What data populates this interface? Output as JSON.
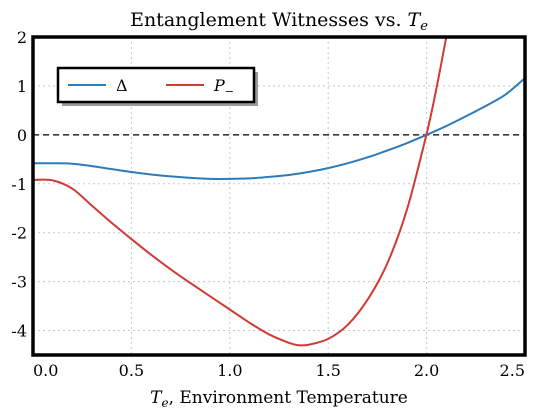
{
  "chart_data": {
    "type": "line",
    "title": {
      "text": "Entanglement Witnesses vs. ",
      "symbol": "T",
      "symbol_sub": "e"
    },
    "xlabel": {
      "symbol": "T",
      "symbol_sub": "e",
      "text": ", Environment Temperature"
    },
    "ylabel": "",
    "xlim": [
      0,
      2.5
    ],
    "ylim": [
      -4.5,
      2
    ],
    "xticks": [
      "0.0",
      "0.5",
      "1.0",
      "1.5",
      "2.0",
      "2.5"
    ],
    "yticks": [
      "2",
      "1",
      "0",
      "-1",
      "-2",
      "-3",
      "-4"
    ],
    "grid": true,
    "reference_line_y": 0,
    "legend_position": "upper-left",
    "series": [
      {
        "name": "Δ",
        "color": "#2e7bb8",
        "x": [
          0.0,
          0.1,
          0.2,
          0.3,
          0.4,
          0.5,
          0.6,
          0.7,
          0.8,
          0.9,
          1.0,
          1.1,
          1.2,
          1.3,
          1.4,
          1.5,
          1.6,
          1.7,
          1.8,
          1.9,
          2.0,
          2.1,
          2.2,
          2.3,
          2.4,
          2.5
        ],
        "y": [
          -0.58,
          -0.58,
          -0.59,
          -0.64,
          -0.7,
          -0.76,
          -0.81,
          -0.85,
          -0.88,
          -0.9,
          -0.9,
          -0.89,
          -0.86,
          -0.82,
          -0.76,
          -0.68,
          -0.58,
          -0.46,
          -0.32,
          -0.17,
          0.0,
          0.18,
          0.38,
          0.59,
          0.82,
          1.16
        ]
      },
      {
        "name": "P",
        "name_sub": "−",
        "color": "#d03a35",
        "x": [
          0.0,
          0.1,
          0.2,
          0.3,
          0.4,
          0.5,
          0.6,
          0.7,
          0.8,
          0.9,
          1.0,
          1.1,
          1.2,
          1.3,
          1.35,
          1.4,
          1.5,
          1.6,
          1.7,
          1.8,
          1.9,
          2.0,
          2.05,
          2.1
        ],
        "y": [
          -0.92,
          -0.93,
          -1.1,
          -1.45,
          -1.8,
          -2.13,
          -2.45,
          -2.75,
          -3.03,
          -3.3,
          -3.57,
          -3.84,
          -4.08,
          -4.25,
          -4.3,
          -4.29,
          -4.17,
          -3.88,
          -3.37,
          -2.63,
          -1.53,
          0.02,
          0.95,
          2.0
        ]
      }
    ]
  }
}
